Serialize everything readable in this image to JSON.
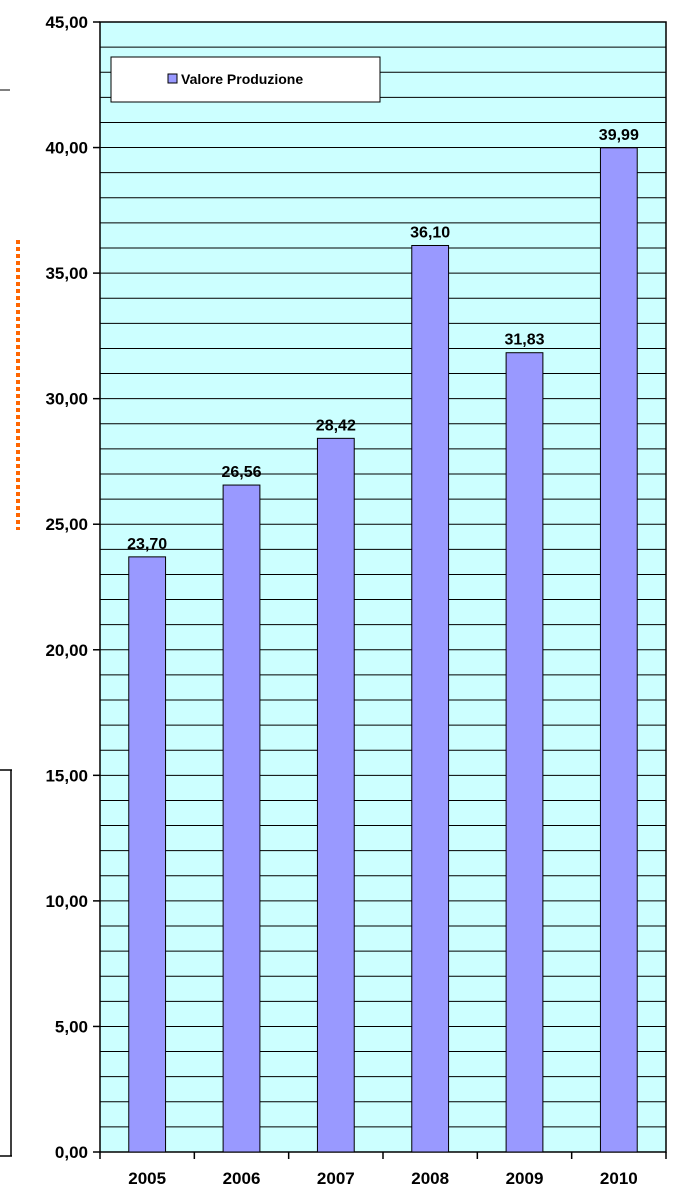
{
  "chart_data": {
    "type": "bar",
    "categories": [
      "2005",
      "2006",
      "2007",
      "2008",
      "2009",
      "2010"
    ],
    "series": [
      {
        "name": "Valore Produzione",
        "values": [
          23.7,
          26.56,
          28.42,
          36.1,
          31.83,
          39.99
        ],
        "value_labels": [
          "23,70",
          "26,56",
          "28,42",
          "36,10",
          "31,83",
          "39,99"
        ]
      }
    ],
    "ylim": [
      0,
      45
    ],
    "yticks": [
      0,
      5,
      10,
      15,
      20,
      25,
      30,
      35,
      40,
      45
    ],
    "ytick_labels": [
      "0,00",
      "5,00",
      "10,00",
      "15,00",
      "20,00",
      "25,00",
      "30,00",
      "35,00",
      "40,00",
      "45,00"
    ],
    "minor_grid_step": 1,
    "legend": {
      "position": "top-left",
      "label": "Valore Produzione"
    },
    "colors": {
      "plot_background": "#ccffff",
      "bar_fill": "#9999ff",
      "grid": "#000000",
      "side_decoration": "#ff6600"
    }
  }
}
